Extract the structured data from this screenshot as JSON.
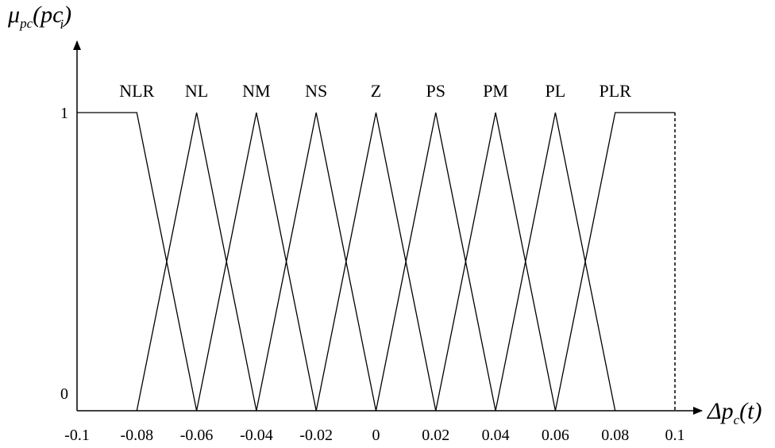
{
  "chart_data": {
    "type": "line",
    "y_axis_label": {
      "main": "μ",
      "sub": "pc",
      "arg": "pc",
      "arg_sub": "i"
    },
    "x_axis_label": {
      "main": "Δp",
      "sub": "c",
      "arg": "t"
    },
    "x_ticks": [
      {
        "value": -0.1,
        "label": "-0.1"
      },
      {
        "value": -0.08,
        "label": "-0.08"
      },
      {
        "value": -0.06,
        "label": "-0.06"
      },
      {
        "value": -0.04,
        "label": "-0.04"
      },
      {
        "value": -0.02,
        "label": "-0.02"
      },
      {
        "value": 0,
        "label": "0"
      },
      {
        "value": 0.02,
        "label": "0.02"
      },
      {
        "value": 0.04,
        "label": "0.04"
      },
      {
        "value": 0.06,
        "label": "0.06"
      },
      {
        "value": 0.08,
        "label": "0.08"
      },
      {
        "value": 0.1,
        "label": "0.1"
      }
    ],
    "y_ticks": [
      {
        "value": 0,
        "label": "0"
      },
      {
        "value": 1,
        "label": "1"
      }
    ],
    "xlim": [
      -0.1,
      0.1
    ],
    "ylim": [
      0,
      1
    ],
    "grid": false,
    "series": [
      {
        "name": "NLR",
        "label_x": -0.08,
        "x": [
          -0.1,
          -0.08,
          -0.06
        ],
        "y": [
          1,
          1,
          0
        ]
      },
      {
        "name": "NL",
        "label_x": -0.06,
        "x": [
          -0.08,
          -0.06,
          -0.04
        ],
        "y": [
          0,
          1,
          0
        ]
      },
      {
        "name": "NM",
        "label_x": -0.04,
        "x": [
          -0.06,
          -0.04,
          -0.02
        ],
        "y": [
          0,
          1,
          0
        ]
      },
      {
        "name": "NS",
        "label_x": -0.02,
        "x": [
          -0.04,
          -0.02,
          0
        ],
        "y": [
          0,
          1,
          0
        ]
      },
      {
        "name": "Z",
        "label_x": 0,
        "x": [
          -0.02,
          0,
          0.02
        ],
        "y": [
          0,
          1,
          0
        ]
      },
      {
        "name": "PS",
        "label_x": 0.02,
        "x": [
          0,
          0.02,
          0.04
        ],
        "y": [
          0,
          1,
          0
        ]
      },
      {
        "name": "PM",
        "label_x": 0.04,
        "x": [
          0.02,
          0.04,
          0.06
        ],
        "y": [
          0,
          1,
          0
        ]
      },
      {
        "name": "PL",
        "label_x": 0.06,
        "x": [
          0.04,
          0.06,
          0.08
        ],
        "y": [
          0,
          1,
          0
        ]
      },
      {
        "name": "PLR",
        "label_x": 0.08,
        "x": [
          0.06,
          0.08,
          0.1
        ],
        "y": [
          0,
          1,
          1
        ]
      }
    ]
  }
}
